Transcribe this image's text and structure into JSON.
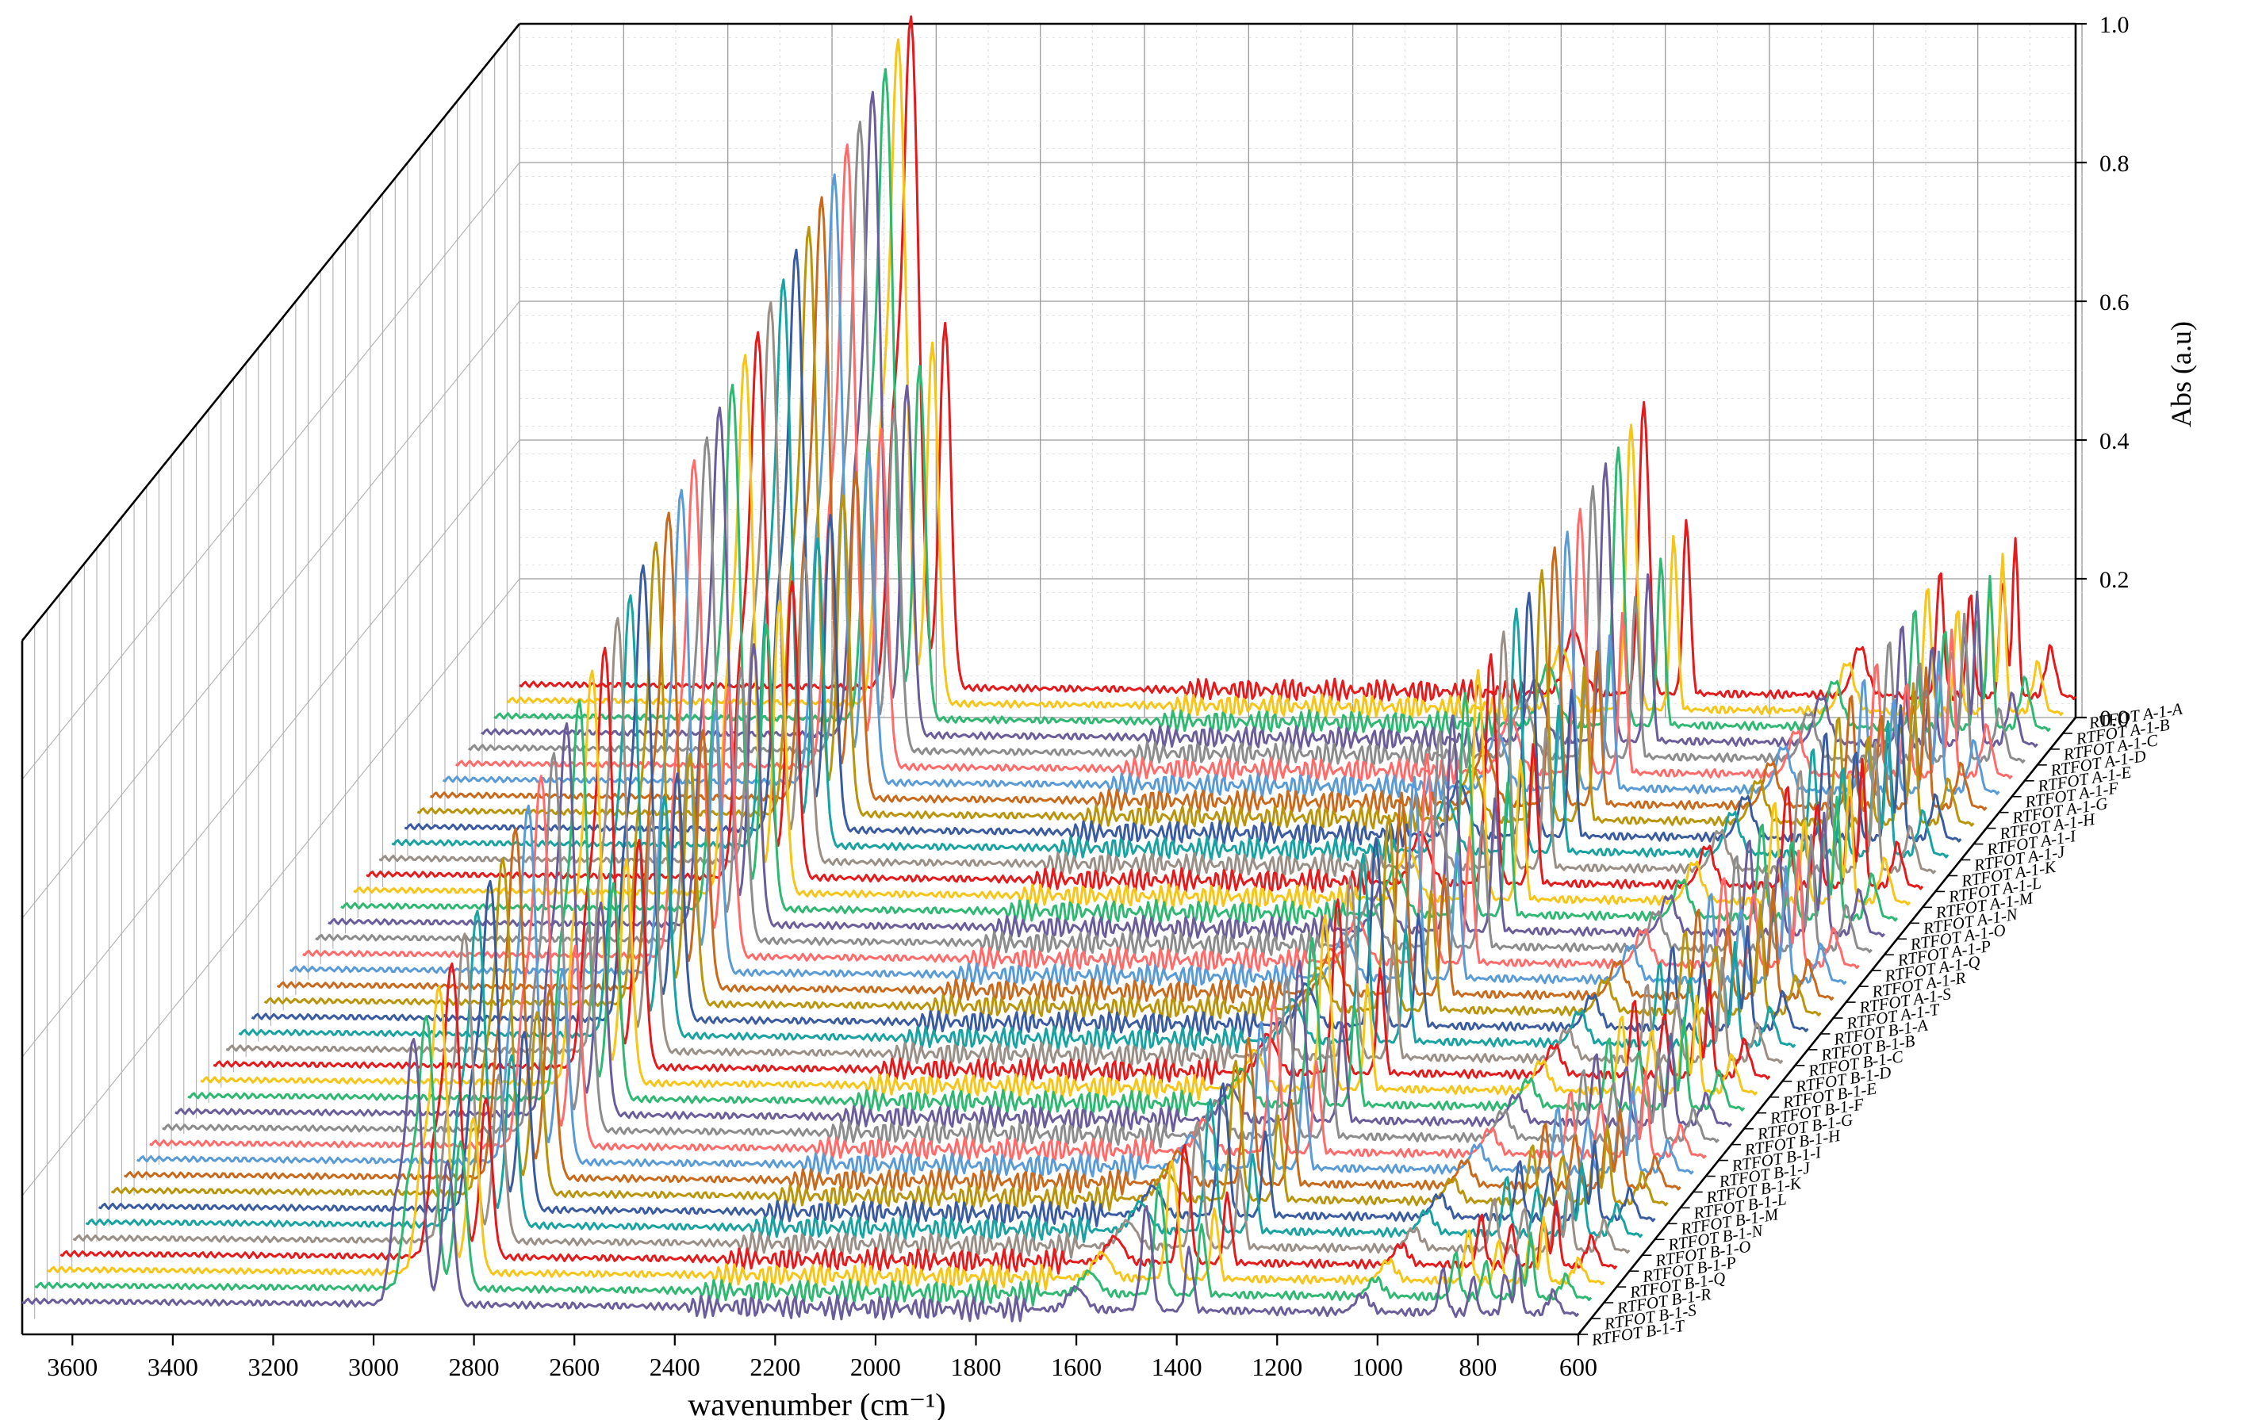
{
  "chart_data": {
    "type": "line",
    "subtype": "3d-waterfall",
    "title": "",
    "xlabel": "wavenumber (cm⁻¹)",
    "ylabel": "",
    "zlabel": "Abs (a.u)",
    "xlim": [
      3700,
      600
    ],
    "zlim": [
      0.0,
      1.0
    ],
    "x_ticks": [
      3600,
      3400,
      3200,
      3000,
      2800,
      2600,
      2400,
      2200,
      2000,
      1800,
      1600,
      1400,
      1200,
      1000,
      800,
      600
    ],
    "z_ticks": [
      "0.0",
      "0.2",
      "0.4",
      "0.6",
      "0.8",
      "1.0"
    ],
    "grid": true,
    "legend": "series labels along the right depth axis",
    "colors": [
      "#e41a1c",
      "#f5c518",
      "#2eb872",
      "#6a5d9a",
      "#8c8c8c",
      "#ff6b6b",
      "#5b9bd5",
      "#c8691b",
      "#b8950a",
      "#3a5ba0",
      "#18a3a0",
      "#9a8f86"
    ],
    "series": [
      {
        "name": "RTFOT A-1-A",
        "values": [
          0.03,
          0.96,
          0.42,
          0.25,
          0.2,
          0.07
        ]
      },
      {
        "name": "RTFOT A-1-B",
        "values": [
          0.03,
          0.95,
          0.41,
          0.25,
          0.2,
          0.07
        ]
      },
      {
        "name": "RTFOT A-1-C",
        "values": [
          0.03,
          0.93,
          0.4,
          0.24,
          0.19,
          0.07
        ]
      },
      {
        "name": "RTFOT A-1-D",
        "values": [
          0.03,
          0.92,
          0.4,
          0.24,
          0.19,
          0.07
        ]
      },
      {
        "name": "RTFOT A-1-E",
        "values": [
          0.03,
          0.9,
          0.39,
          0.23,
          0.19,
          0.07
        ]
      },
      {
        "name": "RTFOT A-1-F",
        "values": [
          0.03,
          0.89,
          0.38,
          0.23,
          0.18,
          0.07
        ]
      },
      {
        "name": "RTFOT A-1-G",
        "values": [
          0.03,
          0.87,
          0.37,
          0.22,
          0.18,
          0.07
        ]
      },
      {
        "name": "RTFOT A-1-H",
        "values": [
          0.03,
          0.86,
          0.37,
          0.22,
          0.18,
          0.06
        ]
      },
      {
        "name": "RTFOT A-1-I",
        "values": [
          0.03,
          0.84,
          0.36,
          0.22,
          0.17,
          0.06
        ]
      },
      {
        "name": "RTFOT A-1-J",
        "values": [
          0.03,
          0.83,
          0.35,
          0.21,
          0.17,
          0.06
        ]
      },
      {
        "name": "RTFOT A-1-K",
        "values": [
          0.03,
          0.81,
          0.35,
          0.21,
          0.17,
          0.06
        ]
      },
      {
        "name": "RTFOT A-1-L",
        "values": [
          0.03,
          0.8,
          0.34,
          0.2,
          0.16,
          0.06
        ]
      },
      {
        "name": "RTFOT A-1-M",
        "values": [
          0.03,
          0.78,
          0.33,
          0.2,
          0.16,
          0.06
        ]
      },
      {
        "name": "RTFOT A-1-N",
        "values": [
          0.03,
          0.77,
          0.33,
          0.2,
          0.16,
          0.06
        ]
      },
      {
        "name": "RTFOT A-1-O",
        "values": [
          0.03,
          0.75,
          0.32,
          0.19,
          0.15,
          0.06
        ]
      },
      {
        "name": "RTFOT A-1-P",
        "values": [
          0.03,
          0.74,
          0.31,
          0.19,
          0.15,
          0.06
        ]
      },
      {
        "name": "RTFOT A-1-Q",
        "values": [
          0.03,
          0.72,
          0.31,
          0.18,
          0.15,
          0.06
        ]
      },
      {
        "name": "RTFOT A-1-R",
        "values": [
          0.03,
          0.71,
          0.3,
          0.18,
          0.14,
          0.05
        ]
      },
      {
        "name": "RTFOT A-1-S",
        "values": [
          0.03,
          0.69,
          0.29,
          0.18,
          0.14,
          0.05
        ]
      },
      {
        "name": "RTFOT A-1-T",
        "values": [
          0.03,
          0.68,
          0.29,
          0.17,
          0.14,
          0.05
        ]
      },
      {
        "name": "RTFOT B-1-A",
        "values": [
          0.03,
          0.66,
          0.28,
          0.17,
          0.13,
          0.05
        ]
      },
      {
        "name": "RTFOT B-1-B",
        "values": [
          0.03,
          0.65,
          0.27,
          0.16,
          0.13,
          0.05
        ]
      },
      {
        "name": "RTFOT B-1-C",
        "values": [
          0.03,
          0.63,
          0.27,
          0.16,
          0.13,
          0.05
        ]
      },
      {
        "name": "RTFOT B-1-D",
        "values": [
          0.03,
          0.62,
          0.26,
          0.16,
          0.12,
          0.05
        ]
      },
      {
        "name": "RTFOT B-1-E",
        "values": [
          0.03,
          0.6,
          0.25,
          0.15,
          0.12,
          0.05
        ]
      },
      {
        "name": "RTFOT B-1-F",
        "values": [
          0.03,
          0.59,
          0.25,
          0.15,
          0.12,
          0.05
        ]
      },
      {
        "name": "RTFOT B-1-G",
        "values": [
          0.03,
          0.57,
          0.24,
          0.14,
          0.11,
          0.05
        ]
      },
      {
        "name": "RTFOT B-1-H",
        "values": [
          0.03,
          0.56,
          0.23,
          0.14,
          0.11,
          0.04
        ]
      },
      {
        "name": "RTFOT B-1-I",
        "values": [
          0.03,
          0.54,
          0.23,
          0.14,
          0.11,
          0.04
        ]
      },
      {
        "name": "RTFOT B-1-J",
        "values": [
          0.03,
          0.53,
          0.22,
          0.13,
          0.1,
          0.04
        ]
      },
      {
        "name": "RTFOT B-1-K",
        "values": [
          0.03,
          0.51,
          0.21,
          0.13,
          0.1,
          0.04
        ]
      },
      {
        "name": "RTFOT B-1-L",
        "values": [
          0.03,
          0.5,
          0.21,
          0.12,
          0.1,
          0.04
        ]
      },
      {
        "name": "RTFOT B-1-M",
        "values": [
          0.03,
          0.48,
          0.2,
          0.12,
          0.09,
          0.04
        ]
      },
      {
        "name": "RTFOT B-1-N",
        "values": [
          0.03,
          0.47,
          0.19,
          0.12,
          0.09,
          0.04
        ]
      },
      {
        "name": "RTFOT B-1-O",
        "values": [
          0.03,
          0.45,
          0.19,
          0.11,
          0.09,
          0.04
        ]
      },
      {
        "name": "RTFOT B-1-P",
        "values": [
          0.03,
          0.44,
          0.18,
          0.11,
          0.08,
          0.04
        ]
      },
      {
        "name": "RTFOT B-1-Q",
        "values": [
          0.03,
          0.42,
          0.17,
          0.1,
          0.08,
          0.04
        ]
      },
      {
        "name": "RTFOT B-1-R",
        "values": [
          0.03,
          0.41,
          0.17,
          0.1,
          0.08,
          0.03
        ]
      },
      {
        "name": "RTFOT B-1-S",
        "values": [
          0.03,
          0.39,
          0.16,
          0.1,
          0.07,
          0.03
        ]
      },
      {
        "name": "RTFOT B-1-T",
        "values": [
          0.03,
          0.38,
          0.15,
          0.09,
          0.07,
          0.03
        ]
      }
    ],
    "x": [
      3700,
      2920,
      1460,
      1375,
      870,
      600
    ]
  }
}
